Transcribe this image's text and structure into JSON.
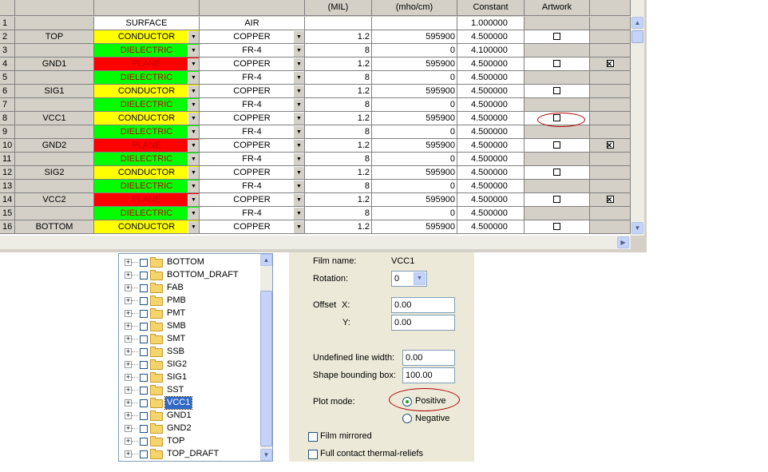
{
  "grid": {
    "headers": {
      "name": "",
      "type": "",
      "material": "",
      "thickness": "(MIL)",
      "conductivity": "(mho/cm)",
      "dielectric": "Constant",
      "film": "Artwork",
      "extra": ""
    },
    "rows": [
      {
        "num": "1",
        "name": "",
        "type": "SURFACE",
        "type_kind": "surface",
        "material": "AIR",
        "thickness": "",
        "conductivity": "",
        "dielectric": "1.000000",
        "artwork": "none",
        "extra": "none"
      },
      {
        "num": "2",
        "name": "TOP",
        "type": "CONDUCTOR",
        "type_kind": "conductor",
        "material": "COPPER",
        "thickness": "1.2",
        "conductivity": "595900",
        "dielectric": "4.500000",
        "artwork": "box",
        "extra": "none"
      },
      {
        "num": "3",
        "name": "",
        "type": "DIELECTRIC",
        "type_kind": "dielectric",
        "material": "FR-4",
        "thickness": "8",
        "conductivity": "0",
        "dielectric": "4.100000",
        "artwork": "none",
        "extra": "none"
      },
      {
        "num": "4",
        "name": "GND1",
        "type": "PLANE",
        "type_kind": "plane",
        "material": "COPPER",
        "thickness": "1.2",
        "conductivity": "595900",
        "dielectric": "4.500000",
        "artwork": "box",
        "extra": "checked"
      },
      {
        "num": "5",
        "name": "",
        "type": "DIELECTRIC",
        "type_kind": "dielectric",
        "material": "FR-4",
        "thickness": "8",
        "conductivity": "0",
        "dielectric": "4.500000",
        "artwork": "none",
        "extra": "none"
      },
      {
        "num": "6",
        "name": "SIG1",
        "type": "CONDUCTOR",
        "type_kind": "conductor",
        "material": "COPPER",
        "thickness": "1.2",
        "conductivity": "595900",
        "dielectric": "4.500000",
        "artwork": "box",
        "extra": "none"
      },
      {
        "num": "7",
        "name": "",
        "type": "DIELECTRIC",
        "type_kind": "dielectric",
        "material": "FR-4",
        "thickness": "8",
        "conductivity": "0",
        "dielectric": "4.500000",
        "artwork": "none",
        "extra": "none"
      },
      {
        "num": "8",
        "name": "VCC1",
        "type": "CONDUCTOR",
        "type_kind": "conductor",
        "material": "COPPER",
        "thickness": "1.2",
        "conductivity": "595900",
        "dielectric": "4.500000",
        "artwork": "box",
        "extra": "none"
      },
      {
        "num": "9",
        "name": "",
        "type": "DIELECTRIC",
        "type_kind": "dielectric",
        "material": "FR-4",
        "thickness": "8",
        "conductivity": "0",
        "dielectric": "4.500000",
        "artwork": "none",
        "extra": "none"
      },
      {
        "num": "10",
        "name": "GND2",
        "type": "PLANE",
        "type_kind": "plane",
        "material": "COPPER",
        "thickness": "1.2",
        "conductivity": "595900",
        "dielectric": "4.500000",
        "artwork": "box",
        "extra": "checked"
      },
      {
        "num": "11",
        "name": "",
        "type": "DIELECTRIC",
        "type_kind": "dielectric",
        "material": "FR-4",
        "thickness": "8",
        "conductivity": "0",
        "dielectric": "4.500000",
        "artwork": "none",
        "extra": "none"
      },
      {
        "num": "12",
        "name": "SIG2",
        "type": "CONDUCTOR",
        "type_kind": "conductor",
        "material": "COPPER",
        "thickness": "1.2",
        "conductivity": "595900",
        "dielectric": "4.500000",
        "artwork": "box",
        "extra": "none"
      },
      {
        "num": "13",
        "name": "",
        "type": "DIELECTRIC",
        "type_kind": "dielectric",
        "material": "FR-4",
        "thickness": "8",
        "conductivity": "0",
        "dielectric": "4.500000",
        "artwork": "none",
        "extra": "none"
      },
      {
        "num": "14",
        "name": "VCC2",
        "type": "PLANE",
        "type_kind": "plane",
        "material": "COPPER",
        "thickness": "1.2",
        "conductivity": "595900",
        "dielectric": "4.500000",
        "artwork": "box",
        "extra": "checked"
      },
      {
        "num": "15",
        "name": "",
        "type": "DIELECTRIC",
        "type_kind": "dielectric",
        "material": "FR-4",
        "thickness": "8",
        "conductivity": "0",
        "dielectric": "4.500000",
        "artwork": "none",
        "extra": "none"
      },
      {
        "num": "16",
        "name": "BOTTOM",
        "type": "CONDUCTOR",
        "type_kind": "conductor",
        "material": "COPPER",
        "thickness": "1.2",
        "conductivity": "595900",
        "dielectric": "4.500000",
        "artwork": "box",
        "extra": "none"
      }
    ],
    "colors": {
      "conductor": "#ffff00",
      "dielectric": "#00ff00",
      "plane": "#ff0000",
      "annotation": "#b00000"
    }
  },
  "tree": {
    "items": [
      {
        "label": "BOTTOM",
        "selected": false
      },
      {
        "label": "BOTTOM_DRAFT",
        "selected": false
      },
      {
        "label": "FAB",
        "selected": false
      },
      {
        "label": "PMB",
        "selected": false
      },
      {
        "label": "PMT",
        "selected": false
      },
      {
        "label": "SMB",
        "selected": false
      },
      {
        "label": "SMT",
        "selected": false
      },
      {
        "label": "SSB",
        "selected": false
      },
      {
        "label": "SIG2",
        "selected": false
      },
      {
        "label": "SIG1",
        "selected": false
      },
      {
        "label": "SST",
        "selected": false
      },
      {
        "label": "VCC1",
        "selected": true
      },
      {
        "label": "GND1",
        "selected": false
      },
      {
        "label": "GND2",
        "selected": false
      },
      {
        "label": "TOP",
        "selected": false
      },
      {
        "label": "TOP_DRAFT",
        "selected": false
      }
    ]
  },
  "film": {
    "film_name_label": "Film name:",
    "film_name": "VCC1",
    "rotation_label": "Rotation:",
    "rotation": "0",
    "offset_label": "Offset",
    "x_label": "X:",
    "offset_x": "0.00",
    "y_label": "Y:",
    "offset_y": "0.00",
    "undef_width_label": "Undefined line width:",
    "undef_width": "0.00",
    "bbox_label": "Shape bounding box:",
    "bbox": "100.00",
    "plot_mode_label": "Plot mode:",
    "positive_label": "Positive",
    "negative_label": "Negative",
    "plot_mode": "positive",
    "film_mirrored_label": "Film mirrored",
    "film_mirrored": false,
    "full_contact_label": "Full contact thermal-reliefs",
    "full_contact": false
  }
}
